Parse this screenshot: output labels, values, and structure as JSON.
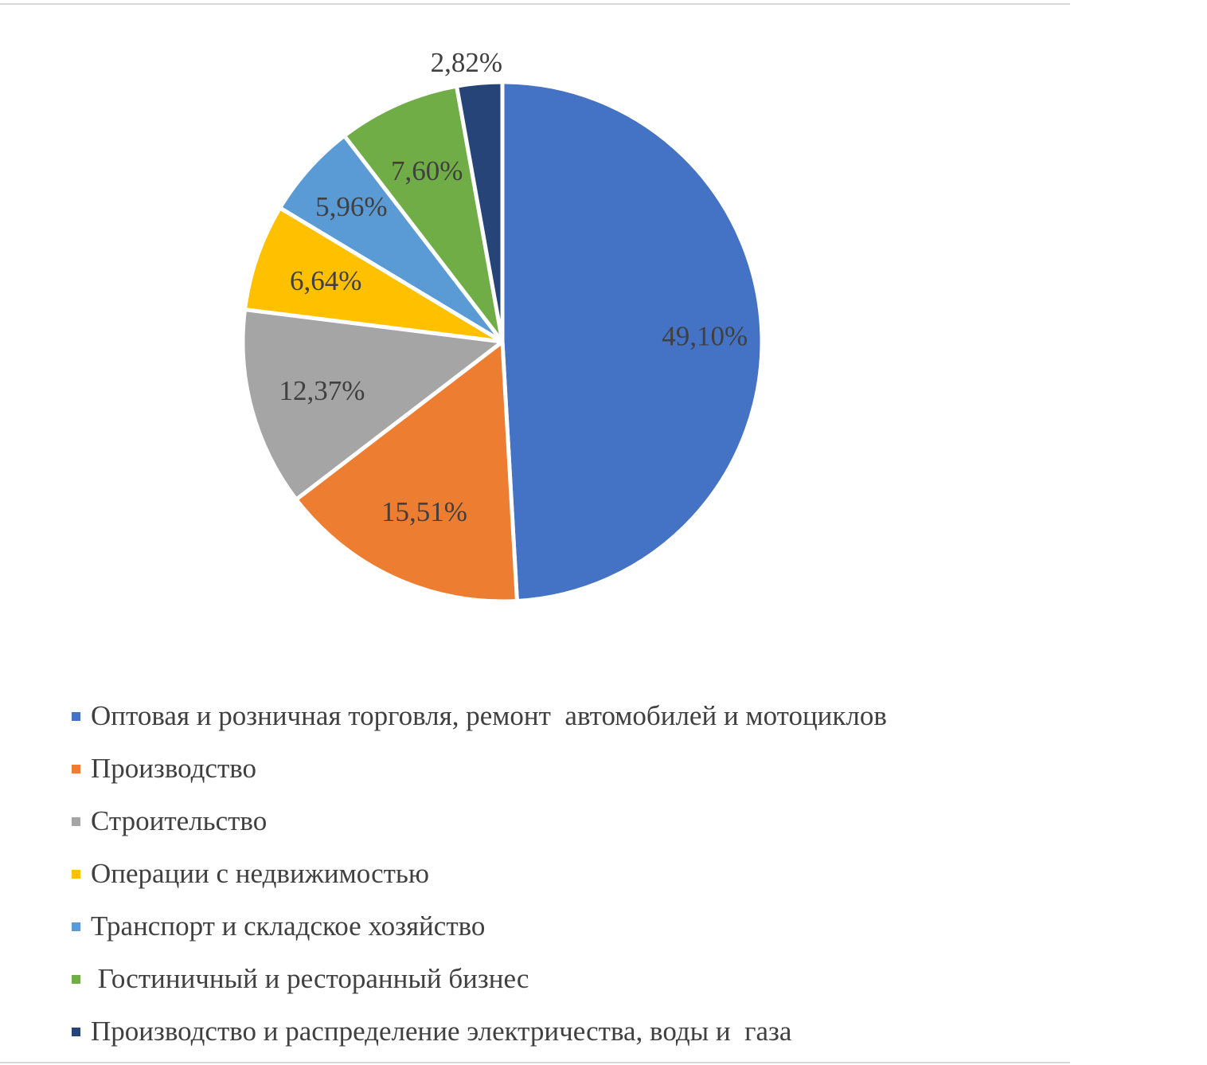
{
  "chart_data": {
    "type": "pie",
    "slices": [
      {
        "label": "Оптовая и розничная торговля, ремонт  автомобилей и мотоциклов",
        "value": 49.1,
        "display": "49,10%",
        "color": "#4472C4"
      },
      {
        "label": "Производство",
        "value": 15.51,
        "display": "15,51%",
        "color": "#ED7D31"
      },
      {
        "label": "Строительство",
        "value": 12.37,
        "display": "12,37%",
        "color": "#A5A5A5"
      },
      {
        "label": "Операции с недвижимостью",
        "value": 6.64,
        "display": "6,64%",
        "color": "#FFC000"
      },
      {
        "label": "Транспорт и складское хозяйство",
        "value": 5.96,
        "display": "5,96%",
        "color": "#5B9BD5"
      },
      {
        "label": " Гостиничный и ресторанный бизнес",
        "value": 7.6,
        "display": "7,60%",
        "color": "#70AD47"
      },
      {
        "label": "Производство и распределение электричества, воды и  газа",
        "value": 2.82,
        "display": "2,82%",
        "color": "#264478"
      }
    ],
    "legend_position": "bottom"
  }
}
